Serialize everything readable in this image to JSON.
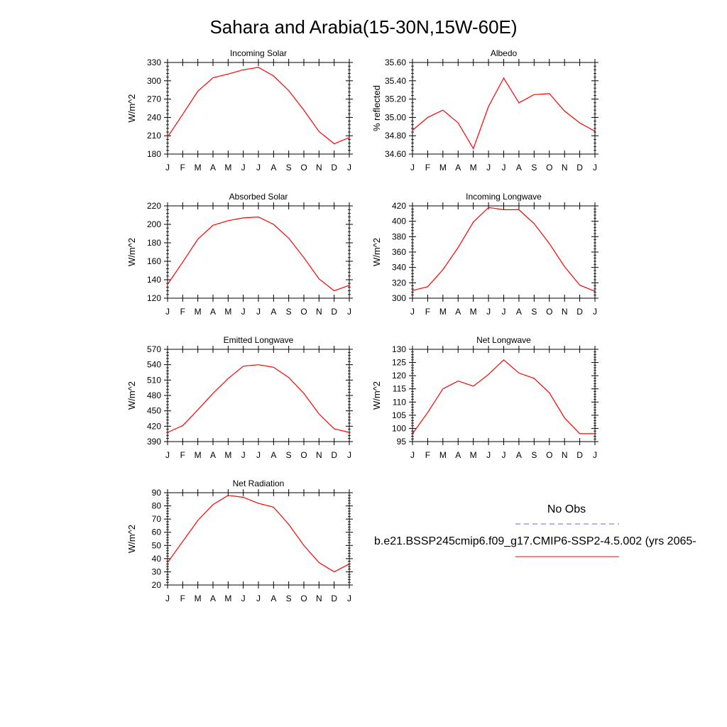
{
  "figure": {
    "title": "Sahara and Arabia(15-30N,15W-60E)"
  },
  "months": [
    "J",
    "F",
    "M",
    "A",
    "M",
    "J",
    "J",
    "A",
    "S",
    "O",
    "N",
    "D",
    "J"
  ],
  "chart_data": [
    {
      "type": "line",
      "title": "Incoming Solar",
      "ylabel": "W/m^2",
      "ylim": [
        180,
        330
      ],
      "yticks": [
        180,
        210,
        240,
        270,
        300,
        330
      ],
      "y_tick_labels": [
        "180",
        "210",
        "240",
        "270",
        "300",
        "330"
      ],
      "categories": [
        "J",
        "F",
        "M",
        "A",
        "M",
        "J",
        "J",
        "A",
        "S",
        "O",
        "N",
        "D",
        "J"
      ],
      "series": [
        {
          "values": [
            208,
            245,
            283,
            305,
            311,
            318,
            322,
            308,
            284,
            252,
            217,
            197,
            207
          ]
        }
      ]
    },
    {
      "type": "line",
      "title": "Albedo",
      "ylabel": "% reflected",
      "ylim": [
        34.6,
        35.6
      ],
      "yticks": [
        34.6,
        34.8,
        35.0,
        35.2,
        35.4,
        35.6
      ],
      "y_tick_labels": [
        "34.60",
        "34.80",
        "35.00",
        "35.20",
        "35.40",
        "35.60"
      ],
      "categories": [
        "J",
        "F",
        "M",
        "A",
        "M",
        "J",
        "J",
        "A",
        "S",
        "O",
        "N",
        "D",
        "J"
      ],
      "series": [
        {
          "values": [
            34.86,
            35.0,
            35.08,
            34.94,
            34.66,
            35.12,
            35.43,
            35.16,
            35.25,
            35.26,
            35.07,
            34.94,
            34.85
          ]
        }
      ]
    },
    {
      "type": "line",
      "title": "Absorbed Solar",
      "ylabel": "W/m^2",
      "ylim": [
        120,
        220
      ],
      "yticks": [
        120,
        140,
        160,
        180,
        200,
        220
      ],
      "y_tick_labels": [
        "120",
        "140",
        "160",
        "180",
        "200",
        "220"
      ],
      "categories": [
        "J",
        "F",
        "M",
        "A",
        "M",
        "J",
        "J",
        "A",
        "S",
        "O",
        "N",
        "D",
        "J"
      ],
      "series": [
        {
          "values": [
            135,
            159,
            184,
            199,
            204,
            207,
            208,
            200,
            185,
            164,
            141,
            128,
            134
          ]
        }
      ]
    },
    {
      "type": "line",
      "title": "Incoming Longwave",
      "ylabel": "W/m^2",
      "ylim": [
        300,
        420
      ],
      "yticks": [
        300,
        320,
        340,
        360,
        380,
        400,
        420
      ],
      "y_tick_labels": [
        "300",
        "320",
        "340",
        "360",
        "380",
        "400",
        "420"
      ],
      "categories": [
        "J",
        "F",
        "M",
        "A",
        "M",
        "J",
        "J",
        "A",
        "S",
        "O",
        "N",
        "D",
        "J"
      ],
      "series": [
        {
          "values": [
            310,
            315,
            337,
            366,
            399,
            418,
            415,
            415,
            397,
            371,
            341,
            317,
            309
          ]
        }
      ]
    },
    {
      "type": "line",
      "title": "Emitted Longwave",
      "ylabel": "W/m^2",
      "ylim": [
        390,
        570
      ],
      "yticks": [
        390,
        420,
        450,
        480,
        510,
        540,
        570
      ],
      "y_tick_labels": [
        "390",
        "420",
        "450",
        "480",
        "510",
        "540",
        "570"
      ],
      "categories": [
        "J",
        "F",
        "M",
        "A",
        "M",
        "J",
        "J",
        "A",
        "S",
        "O",
        "N",
        "D",
        "J"
      ],
      "series": [
        {
          "values": [
            408,
            421,
            452,
            484,
            513,
            537,
            540,
            535,
            515,
            484,
            444,
            415,
            408
          ]
        }
      ]
    },
    {
      "type": "line",
      "title": "Net Longwave",
      "ylabel": "W/m^2",
      "ylim": [
        95,
        130
      ],
      "yticks": [
        95,
        100,
        105,
        110,
        115,
        120,
        125,
        130
      ],
      "y_tick_labels": [
        "95",
        "100",
        "105",
        "110",
        "115",
        "120",
        "125",
        "130"
      ],
      "categories": [
        "J",
        "F",
        "M",
        "A",
        "M",
        "J",
        "J",
        "A",
        "S",
        "O",
        "N",
        "D",
        "J"
      ],
      "series": [
        {
          "values": [
            98,
            106,
            115,
            118,
            116,
            120.5,
            126,
            121,
            119,
            113.5,
            104,
            98,
            98
          ]
        }
      ]
    },
    {
      "type": "line",
      "title": "Net Radiation",
      "ylabel": "W/m^2",
      "ylim": [
        20,
        90
      ],
      "yticks": [
        20,
        30,
        40,
        50,
        60,
        70,
        80,
        90
      ],
      "y_tick_labels": [
        "20",
        "30",
        "40",
        "50",
        "60",
        "70",
        "80",
        "90"
      ],
      "categories": [
        "J",
        "F",
        "M",
        "A",
        "M",
        "J",
        "J",
        "A",
        "S",
        "O",
        "N",
        "D",
        "J"
      ],
      "series": [
        {
          "values": [
            37,
            53,
            69,
            81,
            88,
            86.5,
            82,
            79,
            66,
            50,
            37,
            30,
            36
          ]
        }
      ]
    }
  ],
  "legend": {
    "obs_label": "No Obs",
    "model_label": "b.e21.BSSP245cmip6.f09_g17.CMIP6-SSP2-4.5.002 (yrs 2065-",
    "obs_color": "#6a6ad8",
    "model_color": "#ff0000"
  },
  "colors": {
    "series_line": "#ff0000",
    "axis": "#000000"
  }
}
